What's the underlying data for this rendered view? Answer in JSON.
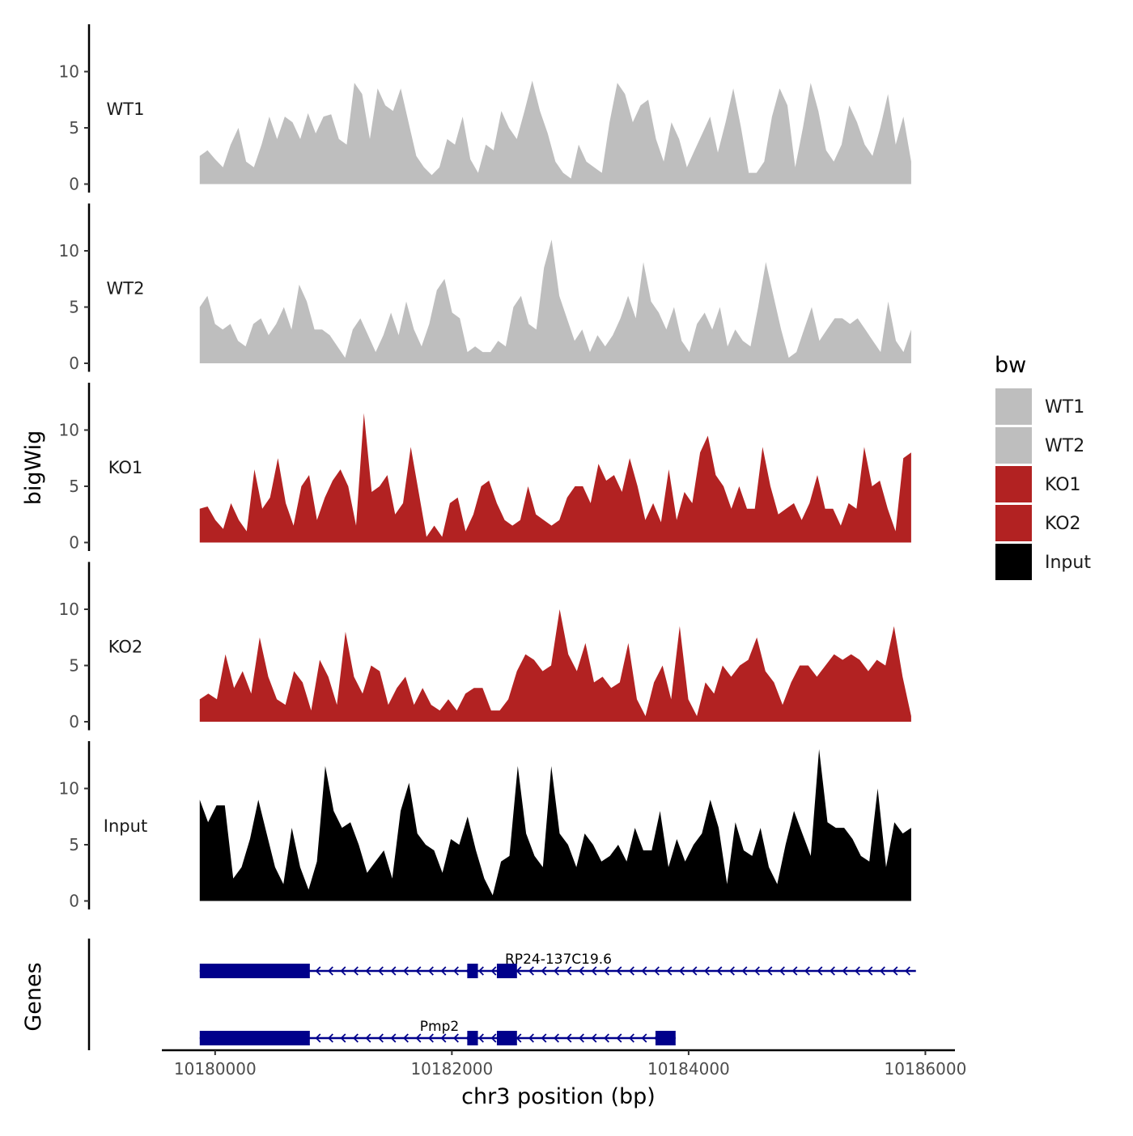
{
  "chart_data": {
    "type": "area",
    "title": "",
    "ylabel": "bigWig",
    "xlabel": "chr3 position (bp)",
    "genes_label": "Genes",
    "xlim": [
      10179550,
      10186250
    ],
    "ylim": [
      0,
      14
    ],
    "x_ticks": [
      10180000,
      10182000,
      10184000,
      10186000
    ],
    "y_ticks": [
      0,
      5,
      10
    ],
    "legend": {
      "title": "bw",
      "entries": [
        {
          "label": "WT1",
          "color": "#bebebe"
        },
        {
          "label": "WT2",
          "color": "#bebebe"
        },
        {
          "label": "KO1",
          "color": "#b22222"
        },
        {
          "label": "KO2",
          "color": "#b22222"
        },
        {
          "label": "Input",
          "color": "#000000"
        }
      ]
    },
    "series": [
      {
        "name": "WT1",
        "color": "#bebebe",
        "x_start": 10179870,
        "x_end": 10185880,
        "values": [
          2.5,
          3,
          2.2,
          1.5,
          3.5,
          5,
          2,
          1.5,
          3.5,
          6,
          4,
          6,
          5.5,
          4,
          6.3,
          4.5,
          6,
          6.2,
          4,
          3.5,
          9,
          8,
          4,
          8.5,
          7,
          6.5,
          8.5,
          5.5,
          2.5,
          1.5,
          0.8,
          1.5,
          4,
          3.5,
          6,
          2.2,
          1,
          3.5,
          3,
          6.5,
          5,
          4,
          6.5,
          9.2,
          6.5,
          4.5,
          2,
          1,
          0.5,
          3.5,
          2,
          1.5,
          1,
          5.5,
          9,
          8,
          5.5,
          7,
          7.5,
          4,
          2,
          5.5,
          4,
          1.5,
          3,
          4.5,
          6,
          2.8,
          5.5,
          8.5,
          5,
          1,
          1,
          2,
          6,
          8.5,
          7,
          1.5,
          5,
          9,
          6.5,
          3,
          2,
          3.5,
          7,
          5.5,
          3.5,
          2.5,
          5,
          8,
          3.5,
          6,
          2
        ]
      },
      {
        "name": "WT2",
        "color": "#bebebe",
        "x_start": 10179870,
        "x_end": 10185880,
        "values": [
          5,
          6,
          3.5,
          3,
          3.5,
          2,
          1.5,
          3.5,
          4,
          2.5,
          3.5,
          5,
          3,
          7,
          5.5,
          3,
          3,
          2.5,
          1.5,
          0.5,
          3,
          4,
          2.5,
          1,
          2.5,
          4.5,
          2.5,
          5.5,
          3,
          1.5,
          3.5,
          6.5,
          7.5,
          4.5,
          4,
          1,
          1.5,
          1,
          1,
          2,
          1.5,
          5,
          6,
          3.5,
          3,
          8.5,
          11,
          6,
          4,
          2,
          3,
          1,
          2.5,
          1.5,
          2.5,
          4,
          6,
          4,
          9,
          5.5,
          4.5,
          3,
          5,
          2,
          1,
          3.5,
          4.5,
          3,
          5,
          1.5,
          3,
          2,
          1.5,
          5,
          9,
          6,
          3,
          0.5,
          1,
          3,
          5,
          2,
          3,
          4,
          4,
          3.5,
          4,
          3,
          2,
          1,
          5.5,
          2,
          1,
          3
        ]
      },
      {
        "name": "KO1",
        "color": "#b22222",
        "x_start": 10179870,
        "x_end": 10185880,
        "values": [
          3,
          3.2,
          2,
          1.2,
          3.5,
          2,
          1,
          6.5,
          3,
          4,
          7.5,
          3.5,
          1.5,
          5,
          6,
          2,
          4,
          5.5,
          6.5,
          5,
          1.5,
          11.5,
          4.5,
          5,
          6,
          2.5,
          3.5,
          8.5,
          4.5,
          0.5,
          1.5,
          0.5,
          3.5,
          4,
          1,
          2.5,
          5,
          5.5,
          3.5,
          2,
          1.5,
          2,
          5,
          2.5,
          2,
          1.5,
          2,
          4,
          5,
          5,
          3.5,
          7,
          5.5,
          6,
          4.5,
          7.5,
          5,
          2,
          3.5,
          1.8,
          6.5,
          2,
          4.5,
          3.5,
          8,
          9.5,
          6,
          5,
          3,
          5,
          3,
          3,
          8.5,
          5,
          2.5,
          3,
          3.5,
          2,
          3.5,
          6,
          3,
          3,
          1.5,
          3.5,
          3,
          8.5,
          5,
          5.5,
          3,
          1,
          7.5,
          8
        ]
      },
      {
        "name": "KO2",
        "color": "#b22222",
        "x_start": 10179870,
        "x_end": 10185880,
        "values": [
          2,
          2.5,
          2,
          6,
          3,
          4.5,
          2.5,
          7.5,
          4,
          2,
          1.5,
          4.5,
          3.5,
          1,
          5.5,
          4,
          1.5,
          8,
          4,
          2.5,
          5,
          4.5,
          1.5,
          3,
          4,
          1.5,
          3,
          1.5,
          1,
          2,
          1,
          2.5,
          3,
          3,
          1,
          1,
          2,
          4.5,
          6,
          5.5,
          4.5,
          5,
          10,
          6,
          4.5,
          7,
          3.5,
          4,
          3,
          3.5,
          7,
          2,
          0.5,
          3.5,
          5,
          2,
          8.5,
          2,
          0.5,
          3.5,
          2.5,
          5,
          4,
          5,
          5.5,
          7.5,
          4.5,
          3.5,
          1.5,
          3.5,
          5,
          5,
          4,
          5,
          6,
          5.5,
          6,
          5.5,
          4.5,
          5.5,
          5,
          8.5,
          4,
          0.5
        ]
      },
      {
        "name": "Input",
        "color": "#000000",
        "x_start": 10179870,
        "x_end": 10185880,
        "values": [
          9,
          7,
          8.5,
          8.5,
          2,
          3,
          5.5,
          9,
          6,
          3,
          1.5,
          6.5,
          3,
          1,
          3.5,
          12,
          8,
          6.5,
          7,
          5,
          2.5,
          3.5,
          4.5,
          2,
          8,
          10.5,
          6,
          5,
          4.5,
          2.5,
          5.5,
          5,
          7.5,
          4.5,
          2,
          0.5,
          3.5,
          4,
          12,
          6,
          4,
          3,
          12,
          6,
          5,
          3,
          6,
          5,
          3.5,
          4,
          5,
          3.5,
          6.5,
          4.5,
          4.5,
          8,
          3,
          5.5,
          3.5,
          5,
          6,
          9,
          6.5,
          1.5,
          7,
          4.5,
          4,
          6.5,
          3,
          1.5,
          5,
          8,
          6,
          4,
          13.5,
          7,
          6.5,
          6.5,
          5.5,
          4,
          3.5,
          10,
          3,
          7,
          6,
          6.5
        ]
      }
    ],
    "genes": [
      {
        "name": "RP24-137C19.6",
        "strand": "-",
        "start": 10179870,
        "end": 10185920,
        "exons": [
          [
            10179870,
            10180800
          ],
          [
            10182130,
            10182220
          ],
          [
            10182380,
            10182550
          ]
        ]
      },
      {
        "name": "Pmp2",
        "strand": "-",
        "start": 10179870,
        "end": 10183890,
        "exons": [
          [
            10179870,
            10180800
          ],
          [
            10182130,
            10182220
          ],
          [
            10182380,
            10182550
          ],
          [
            10183720,
            10183890
          ]
        ]
      }
    ]
  }
}
